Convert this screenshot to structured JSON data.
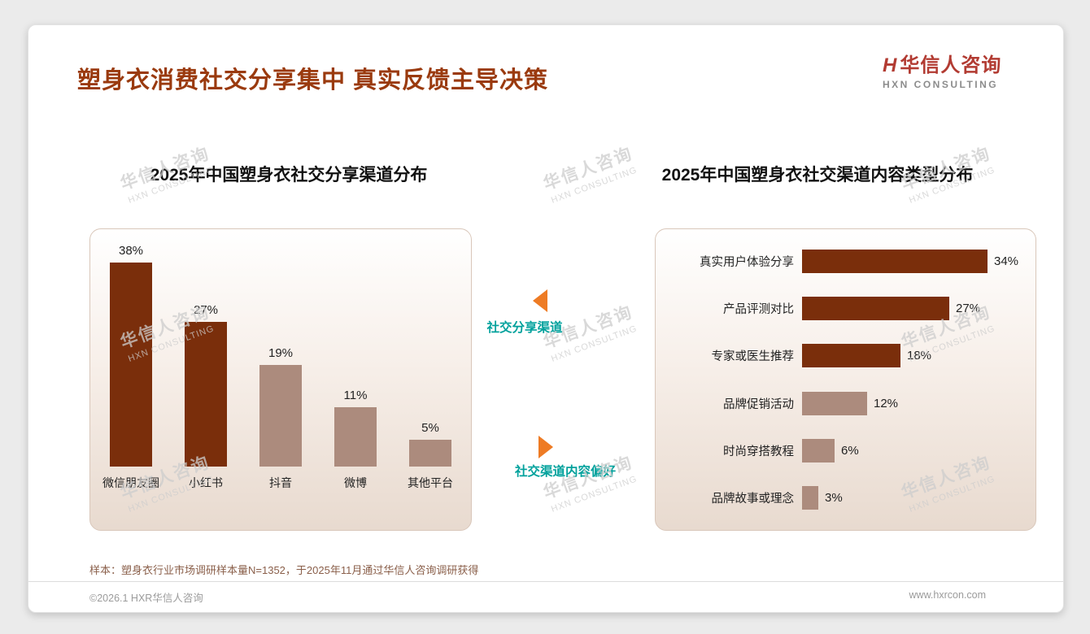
{
  "page": {
    "title": "塑身衣消费社交分享集中 真实反馈主导决策",
    "logo": {
      "mark": "H",
      "name": "华信人咨询",
      "subtitle": "HXN CONSULTING"
    },
    "footnote": "样本：塑身衣行业市场调研样本量N=1352，于2025年11月通过华信人咨询调研获得",
    "copyright": "©2026.1 HXR华信人咨询",
    "website": "www.hxrcon.com"
  },
  "annotations": {
    "left_label": "社交分享渠道",
    "right_label": "社交渠道内容偏好"
  },
  "watermark": {
    "line1": "华信人咨询",
    "line2": "HXN CONSULTING"
  },
  "colors": {
    "accent_title": "#9A3A0E",
    "bar_dark": "#7A2E0B",
    "bar_light": "#AC8B7D",
    "annotation_teal": "#00A19C",
    "arrow_orange": "#EE7B24",
    "logo_red": "#B23B32"
  },
  "chart_data": [
    {
      "type": "bar",
      "orientation": "vertical",
      "title": "2025年中国塑身衣社交分享渠道分布",
      "categories": [
        "微信朋友圈",
        "小红书",
        "抖音",
        "微博",
        "其他平台"
      ],
      "values": [
        38,
        27,
        19,
        11,
        5
      ],
      "value_labels": [
        "38%",
        "27%",
        "19%",
        "11%",
        "5%"
      ],
      "unit": "%",
      "emphasized": [
        true,
        true,
        false,
        false,
        false
      ],
      "ylim": [
        0,
        40
      ],
      "grid": false,
      "legend": "none"
    },
    {
      "type": "bar",
      "orientation": "horizontal",
      "title": "2025年中国塑身衣社交渠道内容类型分布",
      "categories": [
        "真实用户体验分享",
        "产品评测对比",
        "专家或医生推荐",
        "品牌促销活动",
        "时尚穿搭教程",
        "品牌故事或理念"
      ],
      "values": [
        34,
        27,
        18,
        12,
        6,
        3
      ],
      "value_labels": [
        "34%",
        "27%",
        "18%",
        "12%",
        "6%",
        "3%"
      ],
      "unit": "%",
      "emphasized": [
        true,
        true,
        true,
        false,
        false,
        false
      ],
      "xlim": [
        0,
        40
      ],
      "grid": false,
      "legend": "none"
    }
  ]
}
